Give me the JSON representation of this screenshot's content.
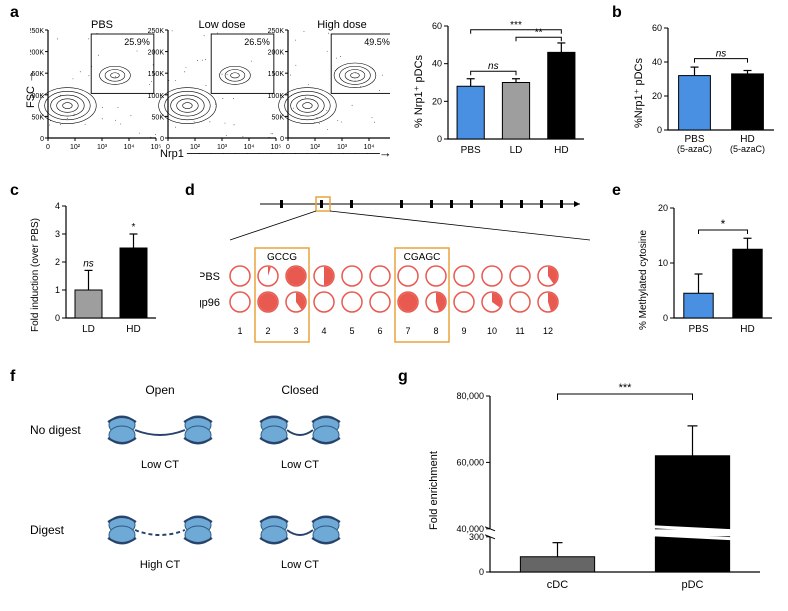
{
  "panel_a": {
    "label": "a",
    "y_axis": "FSC",
    "x_axis": "Nrp1",
    "plots": [
      {
        "title": "PBS",
        "gate_pct": "25.9%"
      },
      {
        "title": "Low dose",
        "gate_pct": "26.5%"
      },
      {
        "title": "High dose",
        "gate_pct": "49.5%"
      }
    ],
    "fsc_ticks": [
      "0",
      "50K",
      "100K",
      "150K",
      "200K",
      "250K"
    ],
    "nrp1_ticks": [
      "0",
      "10²",
      "10³",
      "10⁴",
      "10⁵"
    ],
    "barchart": {
      "ylabel": "% Nrp1⁺ pDCs",
      "ymax": 60,
      "ytick_step": 20,
      "categories": [
        "PBS",
        "LD",
        "HD"
      ],
      "values": [
        28,
        30,
        46
      ],
      "errors": [
        4,
        2,
        5
      ],
      "colors": [
        "#4a90e2",
        "#9e9e9e",
        "#000000"
      ],
      "sig": [
        {
          "a": 0,
          "b": 1,
          "text": "ns",
          "y": 36
        },
        {
          "a": 1,
          "b": 2,
          "text": "**",
          "y": 54
        },
        {
          "a": 0,
          "b": 2,
          "text": "***",
          "y": 58
        }
      ]
    }
  },
  "panel_b": {
    "label": "b",
    "ylabel": "%Nrp1⁺ pDCs",
    "ymax": 60,
    "ytick_step": 20,
    "categories": [
      "PBS\n(5-azaC)",
      "HD\n(5-azaC)"
    ],
    "cat_line1": [
      "PBS",
      "HD"
    ],
    "cat_line2": [
      "(5-azaC)",
      "(5-azaC)"
    ],
    "values": [
      32,
      33
    ],
    "errors": [
      5,
      2
    ],
    "colors": [
      "#4a90e2",
      "#000000"
    ],
    "sig": {
      "text": "ns",
      "y": 42
    }
  },
  "panel_c": {
    "label": "c",
    "ylabel": "Fold induction (over PBS)",
    "ymax": 4,
    "ytick_step": 1,
    "categories": [
      "LD",
      "HD"
    ],
    "values": [
      1.0,
      2.5
    ],
    "errors": [
      0.7,
      0.5
    ],
    "colors": [
      "#9e9e9e",
      "#000000"
    ],
    "annotations": [
      {
        "idx": 0,
        "text": "ns"
      },
      {
        "idx": 1,
        "text": "*"
      }
    ]
  },
  "panel_d": {
    "label": "d",
    "motifs": [
      "GCCG",
      "CGAGC"
    ],
    "rows": [
      "PBS",
      "gp96"
    ],
    "columns": [
      "1",
      "2",
      "3",
      "4",
      "5",
      "6",
      "7",
      "8",
      "9",
      "10",
      "11",
      "12"
    ],
    "methylation": {
      "PBS": [
        0.0,
        0.05,
        1.0,
        0.5,
        0.0,
        0.0,
        0.0,
        0.0,
        0.0,
        0.0,
        0.0,
        0.4
      ],
      "gp96": [
        0.0,
        1.0,
        0.4,
        0.0,
        0.0,
        0.0,
        1.0,
        0.45,
        0.0,
        0.35,
        0.0,
        0.45
      ]
    },
    "highlight_cols": [
      [
        2,
        3
      ],
      [
        7,
        8
      ]
    ],
    "circle_fill": "#e85a4f",
    "circle_stroke": "#e85a4f"
  },
  "panel_e": {
    "label": "e",
    "ylabel": "% Methylated cytosine",
    "ymax": 20,
    "ytick_step": 10,
    "categories": [
      "PBS",
      "HD"
    ],
    "values": [
      4.5,
      12.5
    ],
    "errors": [
      3.5,
      2.0
    ],
    "colors": [
      "#4a90e2",
      "#000000"
    ],
    "sig": {
      "text": "*",
      "y": 16
    }
  },
  "panel_f": {
    "label": "f",
    "col_headers": [
      "Open",
      "Closed"
    ],
    "row_headers": [
      "No digest",
      "Digest"
    ],
    "ct_labels": [
      [
        "Low CT",
        "Low CT"
      ],
      [
        "High CT",
        "Low CT"
      ]
    ]
  },
  "panel_g": {
    "label": "g",
    "ylabel": "Fold enrichment",
    "lower_max": 300,
    "upper_min": 40000,
    "upper_max": 80000,
    "upper_ticks": [
      40000,
      60000,
      80000
    ],
    "lower_ticks": [
      0,
      300
    ],
    "upper_tick_labels": [
      "40,000",
      "60,000",
      "80,000"
    ],
    "lower_tick_labels": [
      "0",
      "300"
    ],
    "categories": [
      "cDC",
      "pDC"
    ],
    "values": [
      130,
      62000
    ],
    "errors": [
      120,
      9000
    ],
    "colors": [
      "#666666",
      "#000000"
    ],
    "sig": {
      "text": "***"
    }
  },
  "style": {
    "bg": "#ffffff",
    "axis_color": "#000000",
    "font": "Arial",
    "panel_label_size": 16,
    "axis_label_size": 11,
    "tick_label_size": 8
  }
}
